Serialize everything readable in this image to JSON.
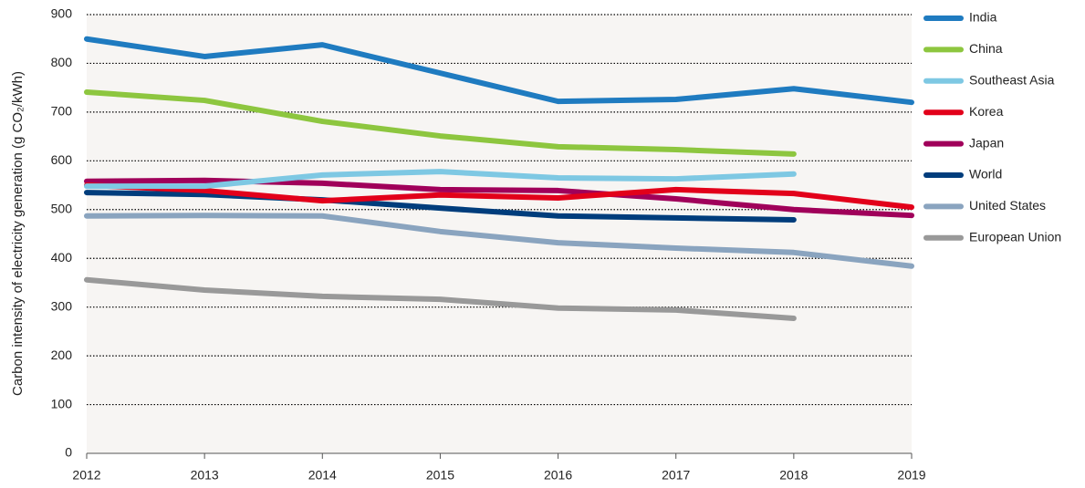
{
  "chart_data": {
    "type": "line",
    "y_label": "Carbon intensity of electricity generation (g CO₂/kWh)",
    "categories": [
      "2012",
      "2013",
      "2014",
      "2015",
      "2016",
      "2017",
      "2018",
      "2019"
    ],
    "ylim": [
      0,
      900
    ],
    "yticks": [
      0,
      100,
      200,
      300,
      400,
      500,
      600,
      700,
      800,
      900
    ],
    "grid": true,
    "legend": "right",
    "series": [
      {
        "name": "India",
        "color": "#1f7bc0",
        "values": [
          850,
          814,
          838,
          780,
          722,
          726,
          748,
          720
        ]
      },
      {
        "name": "China",
        "color": "#8dc63f",
        "values": [
          741,
          724,
          681,
          651,
          629,
          623,
          614,
          null
        ]
      },
      {
        "name": "Southeast Asia",
        "color": "#7ec8e3",
        "values": [
          548,
          548,
          571,
          578,
          565,
          563,
          573,
          null
        ]
      },
      {
        "name": "Korea",
        "color": "#e2001a",
        "values": [
          550,
          539,
          518,
          530,
          524,
          541,
          533,
          505
        ]
      },
      {
        "name": "Japan",
        "color": "#a0005a",
        "values": [
          558,
          560,
          554,
          541,
          539,
          522,
          500,
          488
        ]
      },
      {
        "name": "World",
        "color": "#003d7c",
        "values": [
          535,
          531,
          520,
          503,
          487,
          483,
          479,
          null
        ]
      },
      {
        "name": "United States",
        "color": "#8aa4bf",
        "values": [
          487,
          488,
          487,
          455,
          432,
          421,
          412,
          384
        ]
      },
      {
        "name": "European Union",
        "color": "#999999",
        "values": [
          356,
          335,
          322,
          316,
          298,
          294,
          277,
          null
        ]
      }
    ]
  }
}
